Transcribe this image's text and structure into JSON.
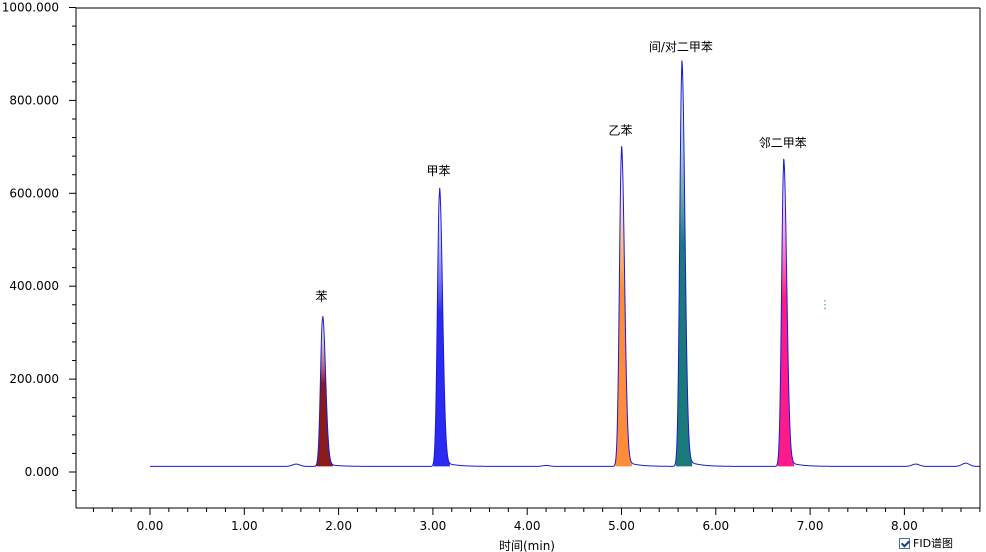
{
  "chart_data": {
    "type": "line",
    "title": "",
    "xlabel": "时间(min)",
    "ylabel": "",
    "xlim": [
      -0.8,
      8.8
    ],
    "ylim": [
      -85,
      1000
    ],
    "x_ticks": [
      "0.00",
      "1.00",
      "2.00",
      "3.00",
      "4.00",
      "5.00",
      "6.00",
      "7.00",
      "8.00"
    ],
    "y_ticks": [
      "0.000",
      "200.000",
      "400.000",
      "600.000",
      "800.000",
      "1000.000"
    ],
    "grid": false,
    "legend": {
      "label": "FID谱图",
      "checked": true,
      "position": "bottom-right"
    },
    "baseline": 12,
    "series": [
      {
        "name": "FID谱图",
        "color": "#1a1ad6"
      }
    ],
    "peaks": [
      {
        "label": "苯",
        "rt": 1.83,
        "height": 318,
        "color": "#8b1a1a"
      },
      {
        "label": "甲苯",
        "rt": 3.07,
        "height": 588,
        "color": "#2a2af0"
      },
      {
        "label": "乙苯",
        "rt": 5.0,
        "height": 675,
        "color": "#ff8c3a"
      },
      {
        "label": "间/对二甲苯",
        "rt": 5.64,
        "height": 855,
        "color": "#1a7a7a"
      },
      {
        "label": "邻二甲苯",
        "rt": 6.72,
        "height": 648,
        "color": "#ff1a8c"
      }
    ],
    "minor_bumps": [
      {
        "rt": 1.55,
        "height": 5
      },
      {
        "rt": 4.2,
        "height": 2
      },
      {
        "rt": 8.12,
        "height": 5
      },
      {
        "rt": 8.65,
        "height": 7
      }
    ]
  }
}
